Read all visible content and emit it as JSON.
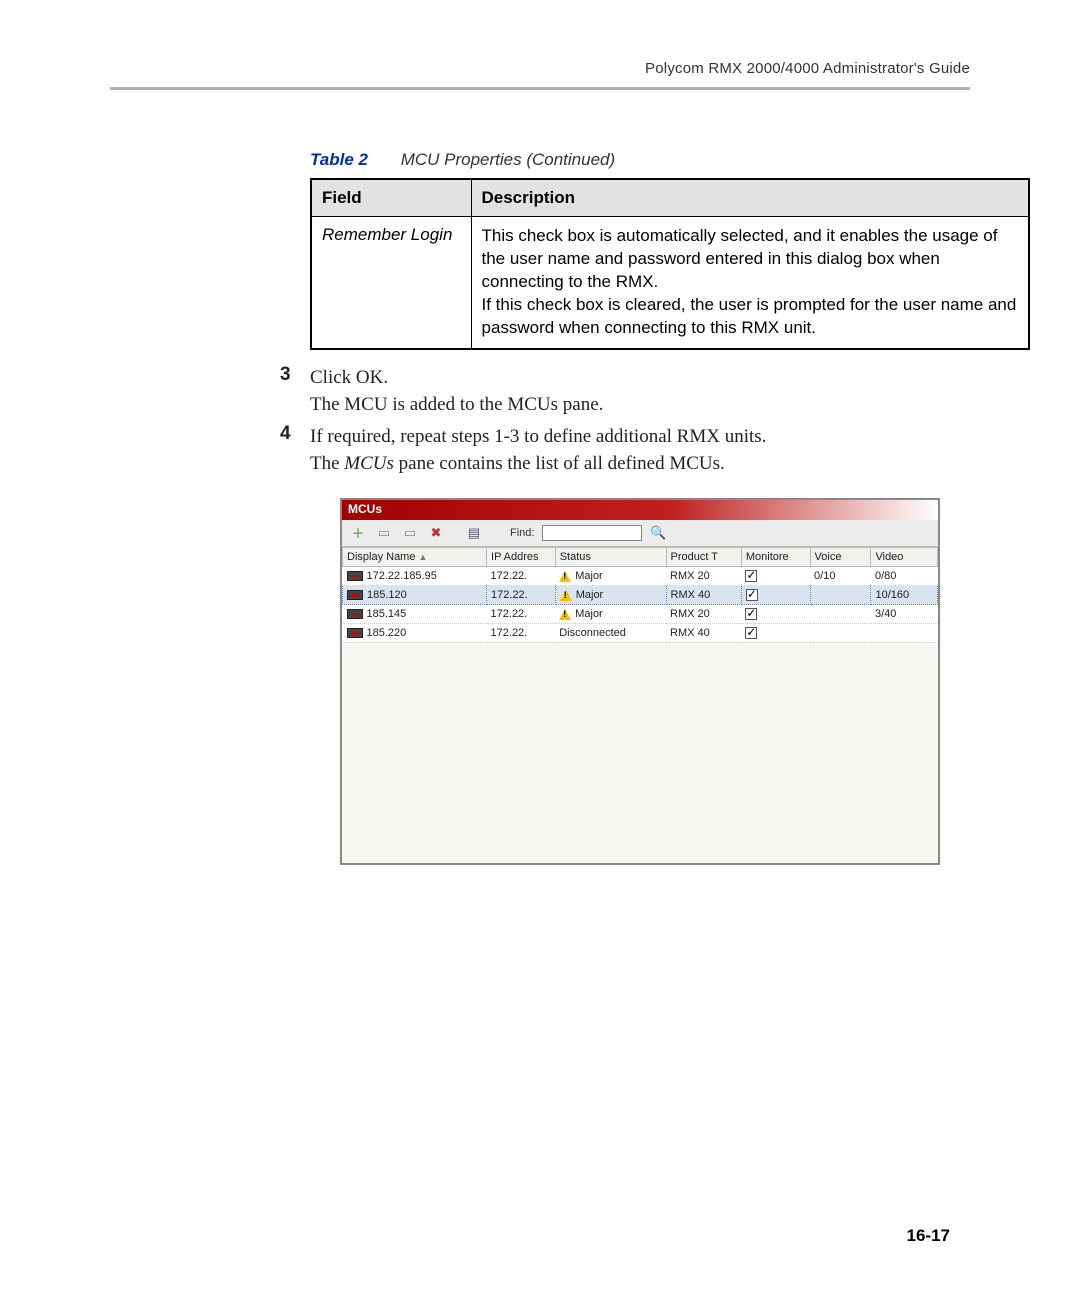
{
  "header": {
    "guide_title": "Polycom RMX 2000/4000 Administrator's Guide"
  },
  "table": {
    "label": "Table 2",
    "title": "MCU Properties (Continued)",
    "headers": {
      "field": "Field",
      "description": "Description"
    },
    "row": {
      "field": "Remember Login",
      "desc_p1": "This check box is automatically selected, and it enables the usage of the user name and password entered in this dialog box when connecting to the RMX.",
      "desc_p2": "If this check box is cleared, the user is prompted for the user name and password when connecting to this RMX unit."
    }
  },
  "steps": {
    "s3_num": "3",
    "s3_line1": "Click OK.",
    "s3_line2": "The MCU is added to the MCUs pane.",
    "s4_num": "4",
    "s4_line1": "If required, repeat steps 1-3 to define additional RMX units.",
    "s4_line2_pre": "The ",
    "s4_line2_italic": "MCUs",
    "s4_line2_post": " pane contains the list of all defined MCUs."
  },
  "panel": {
    "title": "MCUs",
    "find_label": "Find:",
    "columns": {
      "display_name": "Display Name",
      "ip": "IP Addres",
      "status": "Status",
      "product": "Product T",
      "monitored": "Monitore",
      "voice": "Voice",
      "video": "Video"
    },
    "rows": [
      {
        "name": "172.22.185.95",
        "ip": "172.22.",
        "status": "Major",
        "status_icon": true,
        "product": "RMX 20",
        "monitored": true,
        "voice": "0/10",
        "video": "0/80",
        "selected": false
      },
      {
        "name": "185.120",
        "ip": "172.22.",
        "status": "Major",
        "status_icon": true,
        "product": "RMX 40",
        "monitored": true,
        "voice": "",
        "video": "10/160",
        "selected": true
      },
      {
        "name": "185.145",
        "ip": "172.22.",
        "status": "Major",
        "status_icon": true,
        "product": "RMX 20",
        "monitored": true,
        "voice": "",
        "video": "3/40",
        "selected": false
      },
      {
        "name": "185.220",
        "ip": "172.22.",
        "status": "Disconnected",
        "status_icon": false,
        "product": "RMX 40",
        "monitored": true,
        "voice": "",
        "video": "",
        "selected": false
      }
    ]
  },
  "page_number": "16-17",
  "colors": {
    "rule": "#b0b0b0",
    "caption_label": "#0030a0",
    "titlebar_start": "#a00000",
    "titlebar_end": "#ffffff"
  }
}
